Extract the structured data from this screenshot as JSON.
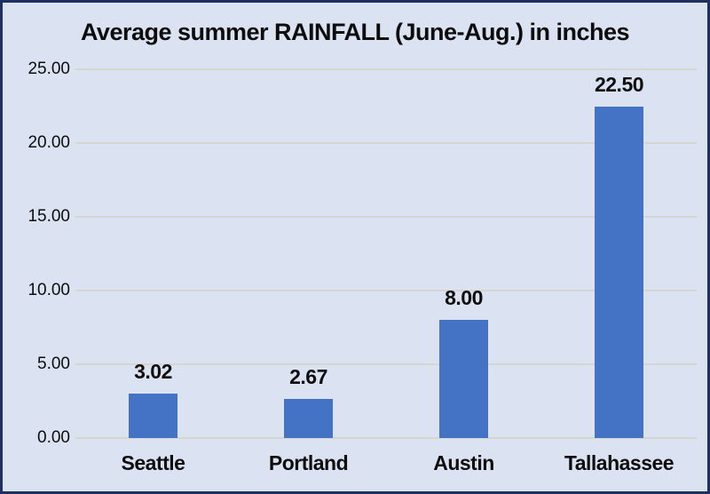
{
  "chart_data": {
    "type": "bar",
    "title": "Average summer RAINFALL (June-Aug.) in inches",
    "categories": [
      "Seattle",
      "Portland",
      "Austin",
      "Tallahassee"
    ],
    "values": [
      3.02,
      2.67,
      8.0,
      22.5
    ],
    "value_labels": [
      "3.02",
      "2.67",
      "8.00",
      "22.50"
    ],
    "xlabel": "",
    "ylabel": "",
    "ylim": [
      0,
      25
    ],
    "ytick_step": 5,
    "ytick_labels": [
      "0.00",
      "5.00",
      "10.00",
      "15.00",
      "20.00",
      "25.00"
    ],
    "grid": true,
    "legend": "none",
    "colors": {
      "bar": "#4472c4",
      "background": "#dbe2f1",
      "frame_border": "#1e2f63",
      "gridline": "#d6d6d0",
      "text": "#0d0d0d"
    }
  }
}
